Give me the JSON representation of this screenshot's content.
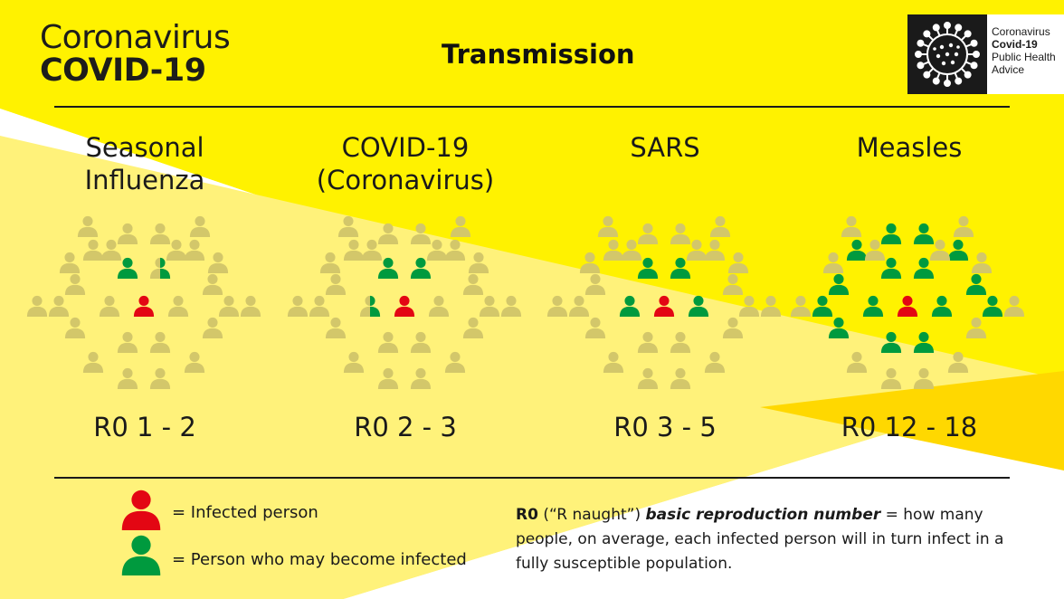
{
  "header": {
    "brand_top": "Coronavirus",
    "brand_main": "COVID-19",
    "title": "Transmission"
  },
  "logo": {
    "line1": "Coronavirus",
    "line2": "Covid-19",
    "line3": "Public Health",
    "line4": "Advice",
    "icon": "virus-icon"
  },
  "diseases": [
    {
      "name_line1": "Seasonal",
      "name_line2": "Influenza",
      "r0_label": "R0 1 - 2",
      "infected_by_one": 1.5
    },
    {
      "name_line1": "COVID-19",
      "name_line2": "(Coronavirus)",
      "r0_label": "R0 2 - 3",
      "infected_by_one": 2.5
    },
    {
      "name_line1": "SARS",
      "name_line2": "",
      "r0_label": "R0 3 - 5",
      "infected_by_one": 4
    },
    {
      "name_line1": "Measles",
      "name_line2": "",
      "r0_label": "R0 12 - 18",
      "infected_by_one": 15
    }
  ],
  "legend": {
    "infected": "=  Infected person",
    "may_become": "=  Person who may become infected"
  },
  "definition": {
    "term": "R0",
    "paren": " (“R naught”) ",
    "emph": "basic reproduction number",
    "rest": " = how many people, on average,  each infected person will in turn infect in a fully susceptible population."
  },
  "colors": {
    "background_yellow": "#fff200",
    "light_yellow": "#fff27a",
    "infected": "#e30613",
    "may_become_infected": "#009a3e",
    "neutral_person": "#d3c76a"
  }
}
